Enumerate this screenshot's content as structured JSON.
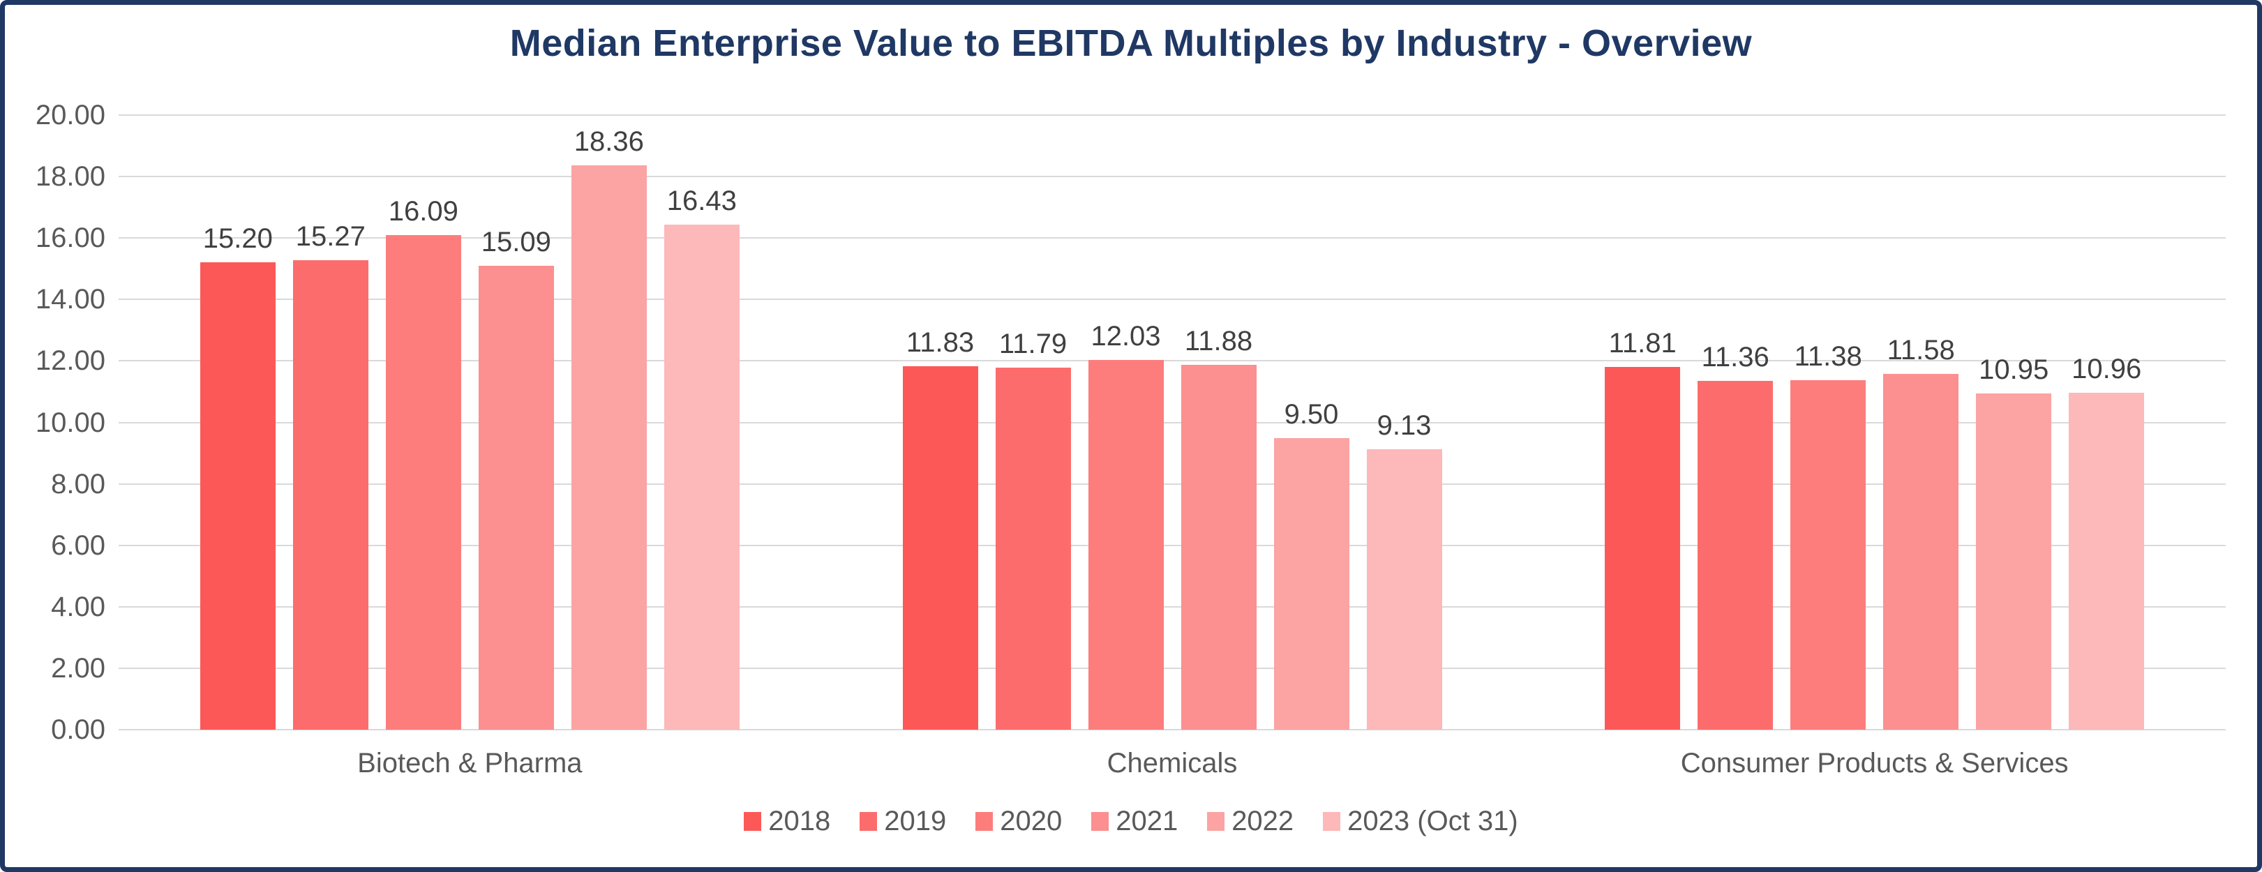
{
  "title": "Median Enterprise Value to EBITDA Multiples by Industry - Overview",
  "colors": {
    "navy": "#1F3864",
    "axis_text": "#595959",
    "data_label": "#404040",
    "gridline": "#D9D9D9",
    "background": "#FFFFFF"
  },
  "chart_data": {
    "type": "bar",
    "title": "Median Enterprise Value to EBITDA Multiples by Industry - Overview",
    "categories": [
      "Biotech & Pharma",
      "Chemicals",
      "Consumer Products & Services"
    ],
    "series": [
      {
        "name": "2018",
        "color": "#FD5858",
        "values": [
          15.2,
          11.83,
          11.81
        ],
        "labels": [
          "15.20",
          "11.83",
          "11.81"
        ]
      },
      {
        "name": "2019",
        "color": "#FD6C6C",
        "values": [
          15.27,
          11.79,
          11.36
        ],
        "labels": [
          "15.27",
          "11.79",
          "11.36"
        ]
      },
      {
        "name": "2020",
        "color": "#FD7D7D",
        "values": [
          16.09,
          12.03,
          11.38
        ],
        "labels": [
          "16.09",
          "12.03",
          "11.38"
        ]
      },
      {
        "name": "2021",
        "color": "#FC8F8F",
        "values": [
          15.09,
          11.88,
          11.58
        ],
        "labels": [
          "15.09",
          "11.88",
          "11.58"
        ]
      },
      {
        "name": "2022",
        "color": "#FCA3A3",
        "values": [
          18.36,
          9.5,
          10.95
        ],
        "labels": [
          "18.36",
          "9.50",
          "10.95"
        ]
      },
      {
        "name": "2023 (Oct 31)",
        "color": "#FDB8B9",
        "values": [
          16.43,
          9.13,
          10.96
        ],
        "labels": [
          "16.43",
          "9.13",
          "10.96"
        ]
      }
    ],
    "y_axis": {
      "min": 0,
      "max": 20,
      "step": 2,
      "tick_labels": [
        "0.00",
        "2.00",
        "4.00",
        "6.00",
        "8.00",
        "10.00",
        "12.00",
        "14.00",
        "16.00",
        "18.00",
        "20.00"
      ]
    },
    "grid": true,
    "legend_position": "bottom",
    "value_labels_shown": true
  }
}
